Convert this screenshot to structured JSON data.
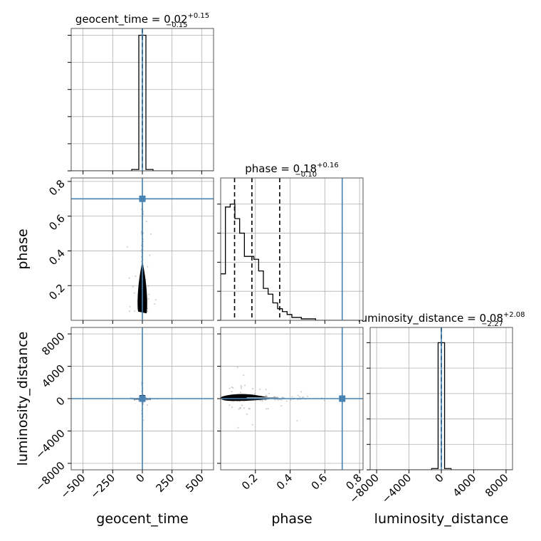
{
  "colors": {
    "truth": "#4682b4",
    "hist": "#000000",
    "grid": "#b0b0b0",
    "scatter": "#9a9a9a"
  },
  "chart_data": {
    "type": "corner",
    "parameters": [
      "geocent_time",
      "phase",
      "luminosity_distance"
    ],
    "titles": [
      {
        "param": "geocent_time",
        "text": "geocent_time = 0.02",
        "sup": "+0.15",
        "sub": "−0.15"
      },
      {
        "param": "phase",
        "text": "phase = 0.18",
        "sup": "+0.16",
        "sub": "−0.10"
      },
      {
        "param": "luminosity_distance",
        "text": "luminosity_distance = 0.08",
        "sup": "+2.08",
        "sub": "−2.27"
      }
    ],
    "axes": {
      "geocent_time": {
        "range": [
          -600,
          600
        ],
        "ticks": [
          -500,
          -250,
          0,
          250,
          500
        ],
        "tick_labels": [
          "−500",
          "−250",
          "0",
          "250",
          "500"
        ]
      },
      "phase": {
        "range": [
          0,
          0.82
        ],
        "ticks": [
          0.2,
          0.4,
          0.6,
          0.8
        ],
        "tick_labels": [
          "0.2",
          "0.4",
          "0.6",
          "0.8"
        ]
      },
      "luminosity_distance": {
        "range": [
          -8800,
          8800
        ],
        "ticks": [
          -8000,
          -4000,
          0,
          4000,
          8000
        ],
        "tick_labels": [
          "−8000",
          "−4000",
          "0",
          "4000",
          "8000"
        ]
      }
    },
    "truths": {
      "geocent_time": 0,
      "phase": 0.7,
      "luminosity_distance": 0
    },
    "quantiles": {
      "geocent_time": [
        -0.13,
        0.02,
        0.17
      ],
      "phase": [
        0.08,
        0.18,
        0.34
      ],
      "luminosity_distance": [
        -2.19,
        0.08,
        2.16
      ]
    },
    "histograms": {
      "geocent_time": {
        "edges": [
          -90,
          -30,
          30,
          90
        ],
        "counts": [
          1,
          100,
          1
        ]
      },
      "phase": {
        "edges": [
          0.0,
          0.0273,
          0.0547,
          0.082,
          0.1093,
          0.1367,
          0.164,
          0.1913,
          0.2187,
          0.246,
          0.2733,
          0.3007,
          0.328,
          0.3553,
          0.3827,
          0.41,
          0.4373,
          0.4647,
          0.492,
          0.5193,
          0.5467,
          0.574,
          0.6013,
          0.6287,
          0.656,
          0.6833,
          0.7107,
          0.738,
          0.7653,
          0.7927,
          0.82
        ],
        "counts": [
          16,
          39,
          40,
          35,
          30,
          22,
          22,
          21,
          17,
          11,
          9,
          6,
          4,
          3,
          2,
          1,
          1,
          0.5,
          0.5,
          0.5,
          0,
          0,
          0,
          0,
          0,
          0,
          0,
          0,
          0,
          0
        ]
      },
      "luminosity_distance": {
        "edges": [
          -1200,
          -400,
          400,
          1200
        ],
        "counts": [
          1,
          100,
          1
        ]
      }
    },
    "hist_ylim": {
      "geocent_time": [
        0,
        105
      ],
      "phase": [
        0,
        49
      ],
      "luminosity_distance": [
        0,
        112
      ]
    },
    "hist_yticks": {
      "geocent_time": [
        0,
        20,
        40,
        60,
        80,
        100
      ],
      "phase": [
        0,
        10,
        20,
        30,
        40
      ],
      "luminosity_distance": [
        0,
        20,
        40,
        60,
        80,
        100
      ]
    },
    "grid": true,
    "xlabels": [
      "geocent_time",
      "phase",
      "luminosity_distance"
    ],
    "ylabels": [
      "",
      "phase",
      "luminosity_distance"
    ]
  }
}
